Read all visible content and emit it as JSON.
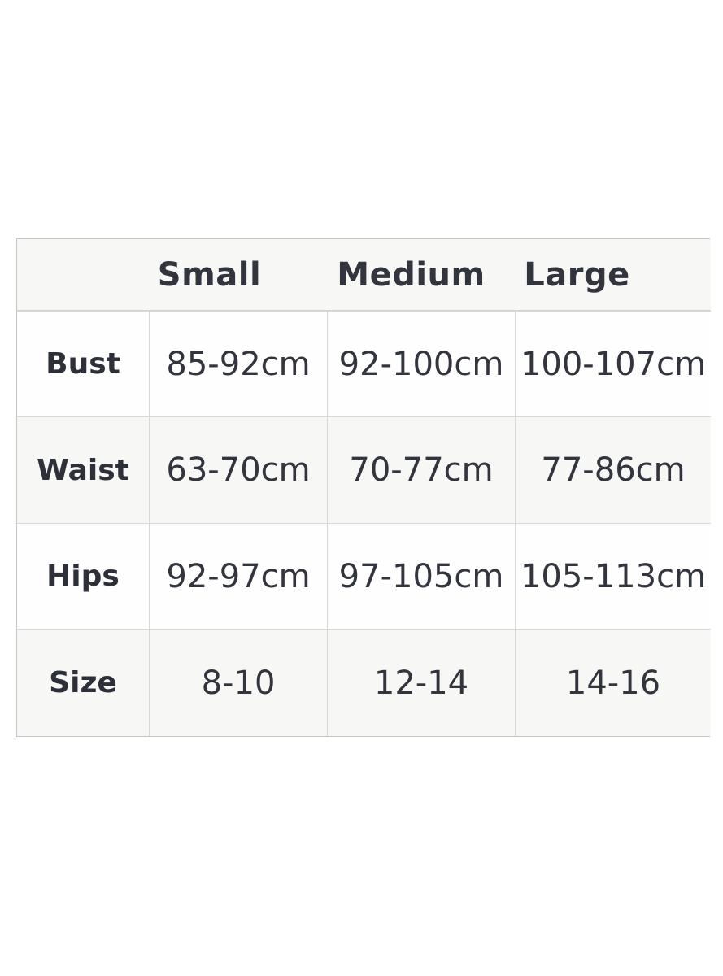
{
  "chart_data": {
    "type": "table",
    "title": "",
    "columns": [
      "",
      "Small",
      "Medium",
      "Large"
    ],
    "rows": [
      {
        "label": "Bust",
        "values": [
          "85-92cm",
          "92-100cm",
          "100-107cm"
        ]
      },
      {
        "label": "Waist",
        "values": [
          "63-70cm",
          "70-77cm",
          "77-86cm"
        ]
      },
      {
        "label": "Hips",
        "values": [
          "92-97cm",
          "97-105cm",
          "105-113cm"
        ]
      },
      {
        "label": "Size",
        "values": [
          "8-10",
          "12-14",
          "14-16"
        ]
      }
    ],
    "layout_hints": {
      "striped_rows": [
        "header",
        "Waist",
        "Size"
      ],
      "header_has_no_vertical_dividers": true
    },
    "colors": {
      "stripe_background": "#f7f7f6",
      "cell_background": "#fefefe",
      "inner_border": "#d8d8d6",
      "outer_border": "#c6c6c4",
      "header_text": "#32353d",
      "label_text": "#2d3038",
      "value_text": "#32353d",
      "page_background": "#ffffff"
    }
  }
}
